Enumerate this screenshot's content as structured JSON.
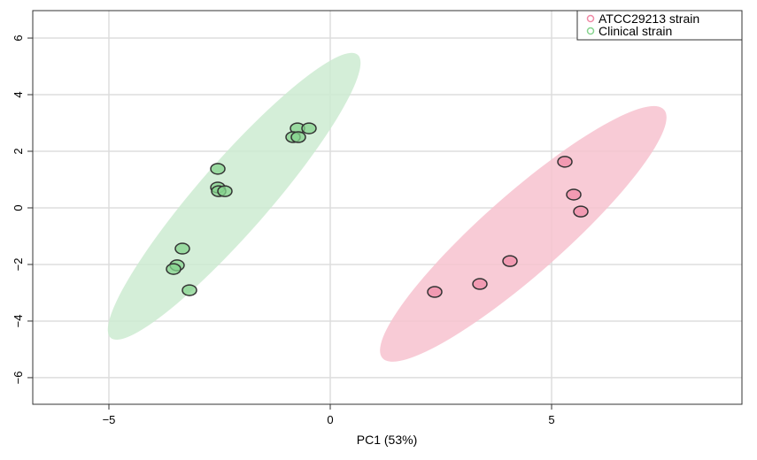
{
  "chart_data": {
    "type": "scatter",
    "title": "",
    "xlabel": "PC1 (53%)",
    "ylabel": "",
    "xlim": [
      -6.72,
      9.3
    ],
    "ylim": [
      -6.94,
      6.97
    ],
    "x_ticks": [
      -5,
      0,
      5
    ],
    "y_ticks": [
      -6,
      -4,
      -2,
      0,
      2,
      4,
      6
    ],
    "grid": true,
    "legend_position": "top-right",
    "series": [
      {
        "name": "ATCC29213 strain",
        "color": "#f08aa6",
        "ellipse_color": "#f7c2cf",
        "points": [
          [
            5.3,
            1.63
          ],
          [
            5.5,
            0.47
          ],
          [
            5.66,
            -0.13
          ],
          [
            4.06,
            -1.88
          ],
          [
            3.38,
            -2.69
          ],
          [
            2.36,
            -2.97
          ]
        ],
        "ellipse": {
          "center": [
            4.36,
            -0.92
          ],
          "major_end": [
            7.54,
            3.47
          ],
          "minor_end": [
            4.96,
            -1.98
          ]
        }
      },
      {
        "name": "Clinical strain",
        "color": "#86d38e",
        "ellipse_color": "#cdebd1",
        "points": [
          [
            -0.74,
            2.81
          ],
          [
            -0.48,
            2.81
          ],
          [
            -0.84,
            2.5
          ],
          [
            -0.72,
            2.5
          ],
          [
            -2.54,
            1.38
          ],
          [
            -2.54,
            0.72
          ],
          [
            -2.52,
            0.59
          ],
          [
            -2.38,
            0.59
          ],
          [
            -3.34,
            -1.44
          ],
          [
            -3.46,
            -2.03
          ],
          [
            -3.54,
            -2.16
          ],
          [
            -3.18,
            -2.91
          ]
        ],
        "ellipse": {
          "center": [
            -2.17,
            0.41
          ],
          "major_end": [
            0.62,
            5.41
          ],
          "minor_end": [
            -1.57,
            -0.42
          ]
        }
      }
    ]
  }
}
